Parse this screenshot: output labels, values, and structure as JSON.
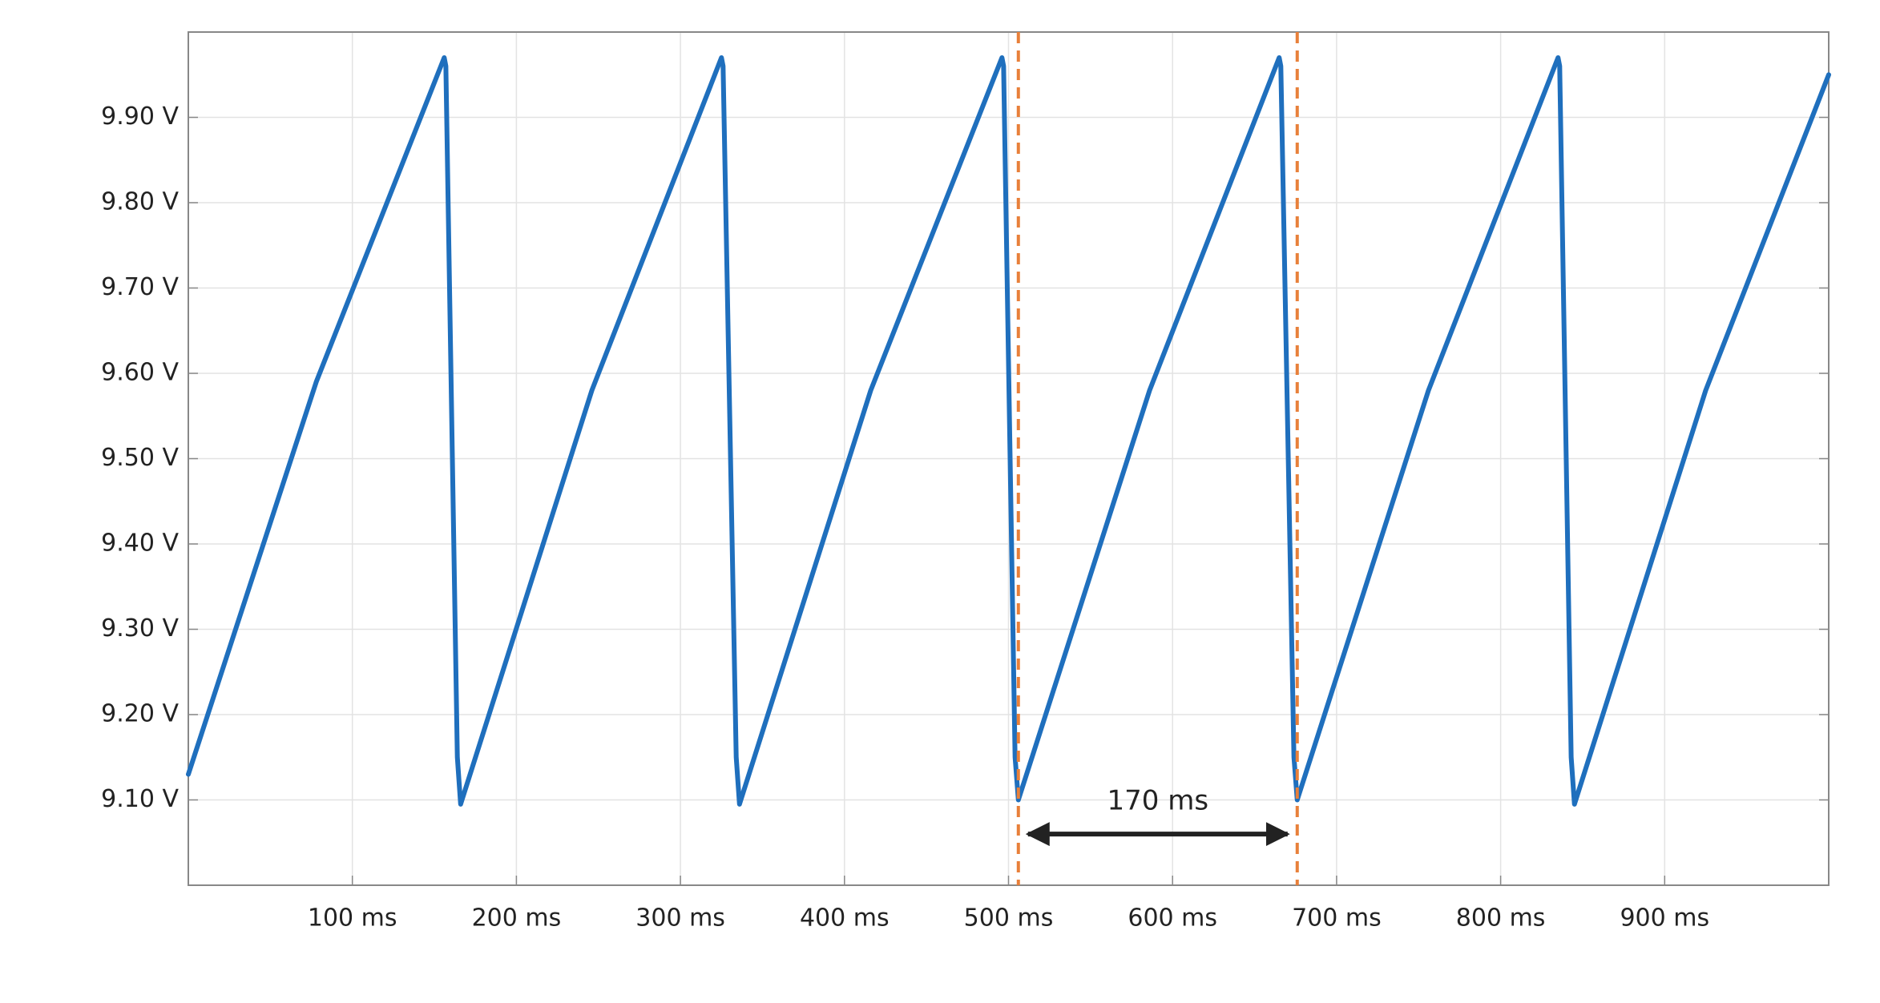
{
  "chart_data": {
    "type": "line",
    "x": [
      0,
      78,
      156,
      157,
      164,
      166,
      246,
      325,
      326,
      334,
      336,
      416,
      496,
      497,
      504,
      506,
      586,
      665,
      666,
      674,
      676,
      756,
      835,
      836,
      843,
      845,
      925,
      1000
    ],
    "values": [
      9.13,
      9.59,
      9.97,
      9.96,
      9.15,
      9.095,
      9.58,
      9.97,
      9.96,
      9.15,
      9.095,
      9.58,
      9.97,
      9.96,
      9.15,
      9.1,
      9.58,
      9.97,
      9.96,
      9.15,
      9.1,
      9.58,
      9.97,
      9.96,
      9.15,
      9.095,
      9.58,
      9.95
    ],
    "color": "#1f6fbd",
    "xlim": [
      0,
      1000
    ],
    "ylim": [
      9.0,
      10.0
    ],
    "xticks": [
      {
        "value": 100,
        "label": "100 ms"
      },
      {
        "value": 200,
        "label": "200 ms"
      },
      {
        "value": 300,
        "label": "300 ms"
      },
      {
        "value": 400,
        "label": "400 ms"
      },
      {
        "value": 500,
        "label": "500 ms"
      },
      {
        "value": 600,
        "label": "600 ms"
      },
      {
        "value": 700,
        "label": "700 ms"
      },
      {
        "value": 800,
        "label": "800 ms"
      },
      {
        "value": 900,
        "label": "900 ms"
      }
    ],
    "yticks": [
      {
        "value": 9.1,
        "label": "9.10 V"
      },
      {
        "value": 9.2,
        "label": "9.20 V"
      },
      {
        "value": 9.3,
        "label": "9.30 V"
      },
      {
        "value": 9.4,
        "label": "9.40 V"
      },
      {
        "value": 9.5,
        "label": "9.50 V"
      },
      {
        "value": 9.6,
        "label": "9.60 V"
      },
      {
        "value": 9.7,
        "label": "9.70 V"
      },
      {
        "value": 9.8,
        "label": "9.80 V"
      },
      {
        "value": 9.9,
        "label": "9.90 V"
      }
    ],
    "grid": true,
    "markers": {
      "x": [
        506,
        676
      ],
      "color": "#e8803a"
    },
    "annotation": {
      "text": "170 ms",
      "x": [
        506,
        676
      ],
      "y": 9.06
    }
  }
}
